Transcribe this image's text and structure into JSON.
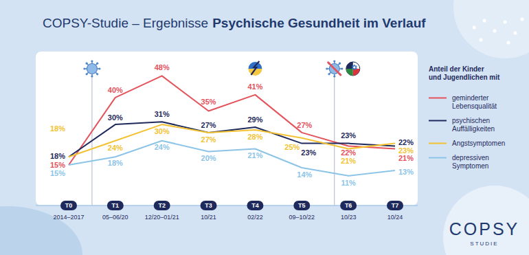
{
  "chart_data": {
    "type": "line",
    "title": "COPSY-Studie – Ergebnisse",
    "subtitle": "Psychische Gesundheit im Verlauf",
    "legend_title": "Anteil der Kinder und Jugendlichen mit",
    "categories": [
      "T0",
      "T1",
      "T2",
      "T3",
      "T4",
      "T5",
      "T6",
      "T7"
    ],
    "category_dates": [
      "2014–2017",
      "05–06/20",
      "12/20–01/21",
      "10/21",
      "02/22",
      "09–10/22",
      "10/23",
      "10/24"
    ],
    "series": [
      {
        "name": "geminderter Lebensqualität",
        "color": "#e4525c",
        "values": [
          15,
          40,
          48,
          35,
          41,
          27,
          22,
          21
        ],
        "value_labels": [
          "15%",
          "40%",
          "48%",
          "35%",
          "41%",
          "27%",
          "22%",
          "21%"
        ]
      },
      {
        "name": "psychischen Auffälligkeiten",
        "color": "#1f2a5c",
        "values": [
          18,
          30,
          31,
          27,
          29,
          23,
          23,
          22
        ],
        "value_labels": [
          "18%",
          "30%",
          "31%",
          "27%",
          "29%",
          "23%",
          "23%",
          "22%"
        ]
      },
      {
        "name": "Angstsymptomen",
        "color": "#f2c232",
        "values": [
          18,
          24,
          30,
          27,
          28,
          25,
          21,
          23
        ],
        "value_labels": [
          "18%",
          "24%",
          "30%",
          "27%",
          "28%",
          "25%",
          "21%",
          "23%"
        ]
      },
      {
        "name": "depressiven Symptomen",
        "color": "#8cc4e8",
        "values": [
          15,
          18,
          24,
          20,
          21,
          14,
          11,
          13
        ],
        "value_labels": [
          "15%",
          "18%",
          "24%",
          "20%",
          "21%",
          "14%",
          "11%",
          "13%"
        ]
      }
    ],
    "ylim": [
      0,
      57
    ],
    "grid": false,
    "legend": "right",
    "data_labels": true,
    "tick_labels": "x",
    "logo": "COPSY",
    "logo_subtitle": "STUDIE"
  }
}
